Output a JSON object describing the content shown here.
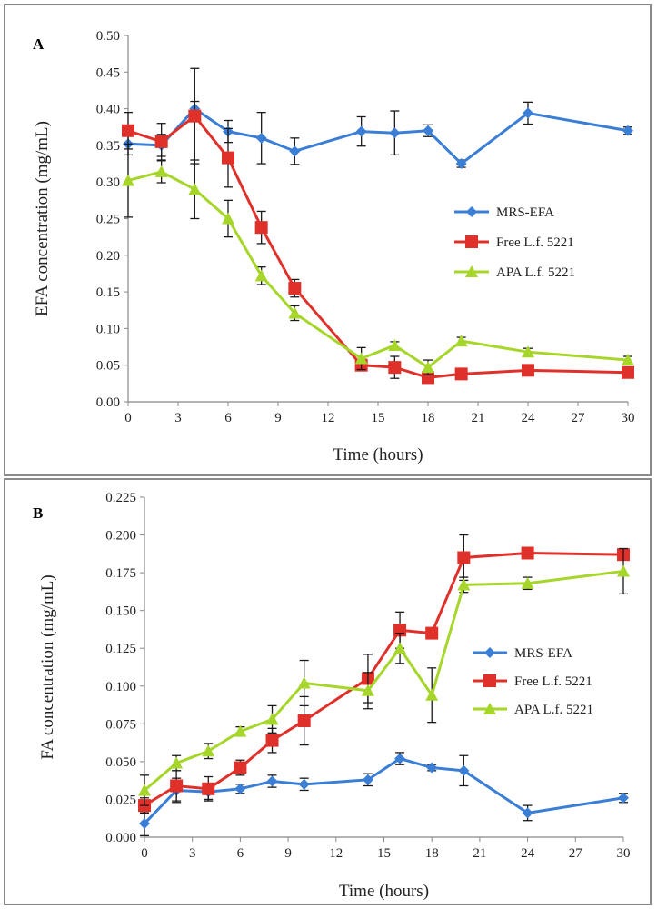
{
  "chart_data": [
    {
      "panel_label": "A",
      "type": "line",
      "xlabel": "Time (hours)",
      "ylabel": "EFA concentration (mg/mL)",
      "xlim": [
        0,
        30
      ],
      "ylim": [
        0,
        0.5
      ],
      "x_ticks": [
        "0",
        "3",
        "6",
        "9",
        "12",
        "15",
        "18",
        "21",
        "24",
        "27",
        "30"
      ],
      "y_ticks": [
        "0.00",
        "0.05",
        "0.10",
        "0.15",
        "0.20",
        "0.25",
        "0.30",
        "0.35",
        "0.40",
        "0.45",
        "0.50"
      ],
      "legend_position": "right",
      "series": [
        {
          "name": "MRS-EFA",
          "color": "#3a7ed6",
          "marker": "diamond",
          "x": [
            0,
            2,
            4,
            6,
            8,
            10,
            14,
            16,
            18,
            20,
            24,
            30
          ],
          "values": [
            0.352,
            0.35,
            0.4,
            0.369,
            0.36,
            0.342,
            0.369,
            0.367,
            0.37,
            0.325,
            0.394,
            0.37
          ],
          "errors": [
            0.015,
            0.015,
            0.01,
            0.015,
            0.035,
            0.018,
            0.02,
            0.03,
            0.008,
            0.005,
            0.015,
            0.005
          ]
        },
        {
          "name": "Free L.f. 5221",
          "color": "#e0302a",
          "marker": "square",
          "x": [
            0,
            2,
            4,
            6,
            8,
            10,
            14,
            16,
            18,
            20,
            24,
            30
          ],
          "values": [
            0.37,
            0.355,
            0.39,
            0.333,
            0.238,
            0.155,
            0.05,
            0.047,
            0.033,
            0.038,
            0.043,
            0.04
          ],
          "errors": [
            0.025,
            0.025,
            0.065,
            0.04,
            0.022,
            0.012,
            0.005,
            0.015,
            0.005,
            0.003,
            0.005,
            0.003
          ]
        },
        {
          "name": "APA L.f. 5221",
          "color": "#a6d62a",
          "marker": "triangle",
          "x": [
            0,
            2,
            4,
            6,
            8,
            10,
            14,
            16,
            18,
            20,
            24,
            30
          ],
          "values": [
            0.302,
            0.314,
            0.29,
            0.25,
            0.172,
            0.121,
            0.059,
            0.077,
            0.047,
            0.083,
            0.068,
            0.057
          ],
          "errors": [
            0.05,
            0.015,
            0.04,
            0.025,
            0.012,
            0.01,
            0.015,
            0.005,
            0.01,
            0.005,
            0.005,
            0.005
          ]
        }
      ]
    },
    {
      "panel_label": "B",
      "type": "line",
      "xlabel": "Time (hours)",
      "ylabel": "FA concentration (mg/mL)",
      "xlim": [
        0,
        30
      ],
      "ylim": [
        0,
        0.225
      ],
      "x_ticks": [
        "0",
        "3",
        "6",
        "9",
        "12",
        "15",
        "18",
        "21",
        "24",
        "27",
        "30"
      ],
      "y_ticks": [
        "0.000",
        "0.025",
        "0.050",
        "0.075",
        "0.100",
        "0.125",
        "0.150",
        "0.175",
        "0.200",
        "0.225"
      ],
      "legend_position": "right",
      "series": [
        {
          "name": "MRS-EFA",
          "color": "#3a7ed6",
          "marker": "diamond",
          "x": [
            0,
            2,
            4,
            6,
            8,
            10,
            14,
            16,
            18,
            20,
            24,
            30
          ],
          "values": [
            0.009,
            0.031,
            0.03,
            0.032,
            0.037,
            0.035,
            0.038,
            0.052,
            0.046,
            0.044,
            0.016,
            0.026
          ],
          "errors": [
            0.008,
            0.008,
            0.005,
            0.003,
            0.004,
            0.004,
            0.004,
            0.004,
            0.002,
            0.01,
            0.005,
            0.003
          ]
        },
        {
          "name": "Free L.f. 5221",
          "color": "#e0302a",
          "marker": "square",
          "x": [
            0,
            2,
            4,
            6,
            8,
            10,
            14,
            16,
            18,
            20,
            24,
            30
          ],
          "values": [
            0.021,
            0.034,
            0.032,
            0.046,
            0.064,
            0.077,
            0.105,
            0.137,
            0.135,
            0.185,
            0.188,
            0.187
          ],
          "errors": [
            0.005,
            0.01,
            0.008,
            0.005,
            0.008,
            0.016,
            0.016,
            0.012,
            0.003,
            0.015,
            0.003,
            0.002
          ]
        },
        {
          "name": "APA L.f. 5221",
          "color": "#a6d62a",
          "marker": "triangle",
          "x": [
            0,
            2,
            4,
            6,
            8,
            10,
            14,
            16,
            18,
            20,
            24,
            30
          ],
          "values": [
            0.031,
            0.049,
            0.057,
            0.07,
            0.078,
            0.102,
            0.097,
            0.125,
            0.094,
            0.167,
            0.168,
            0.176
          ],
          "errors": [
            0.01,
            0.005,
            0.005,
            0.003,
            0.009,
            0.015,
            0.012,
            0.01,
            0.018,
            0.005,
            0.004,
            0.015
          ]
        }
      ]
    }
  ]
}
